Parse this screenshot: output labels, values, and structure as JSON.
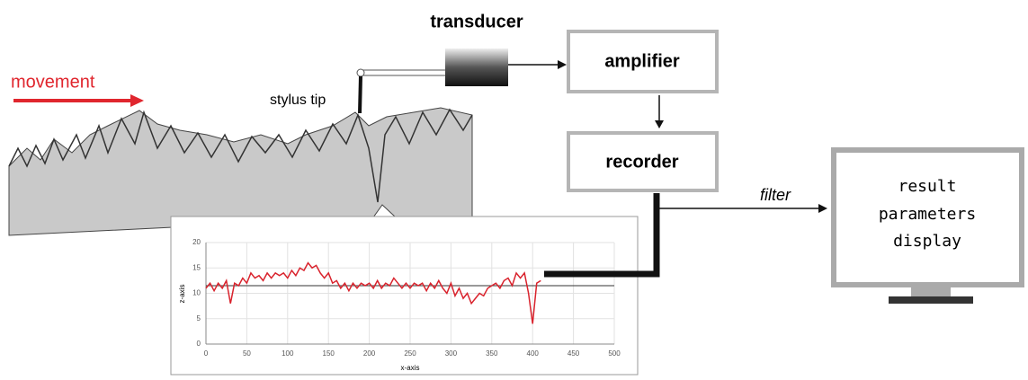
{
  "labels": {
    "movement": "movement",
    "stylus": "stylus tip",
    "transducer": "transducer",
    "amplifier": "amplifier",
    "recorder": "recorder",
    "filter": "filter",
    "display": [
      "result",
      "parameters",
      "display"
    ]
  },
  "chart_data": {
    "type": "line",
    "xlabel": "x-axis",
    "ylabel": "z-axis",
    "grid": true,
    "xlim": [
      0,
      500
    ],
    "xticks": [
      0,
      50,
      100,
      150,
      200,
      250,
      300,
      350,
      400,
      450,
      500
    ],
    "ylim": [
      0,
      20
    ],
    "yticks": [
      0,
      5,
      10,
      15,
      20
    ],
    "hline": 11.5,
    "x": [
      0,
      5,
      10,
      15,
      20,
      25,
      30,
      35,
      40,
      45,
      50,
      55,
      60,
      65,
      70,
      75,
      80,
      85,
      90,
      95,
      100,
      105,
      110,
      115,
      120,
      125,
      130,
      135,
      140,
      145,
      150,
      155,
      160,
      165,
      170,
      175,
      180,
      185,
      190,
      195,
      200,
      205,
      210,
      215,
      220,
      225,
      230,
      235,
      240,
      245,
      250,
      255,
      260,
      265,
      270,
      275,
      280,
      285,
      290,
      295,
      300,
      305,
      310,
      315,
      320,
      325,
      330,
      335,
      340,
      345,
      350,
      355,
      360,
      365,
      370,
      375,
      380,
      385,
      390,
      395,
      400,
      405,
      410
    ],
    "series": [
      {
        "color": "#d9232d",
        "values": [
          11,
          12,
          10.5,
          12,
          11,
          12.5,
          8,
          12,
          11.5,
          13,
          12,
          14,
          13,
          13.5,
          12.5,
          14,
          13,
          14,
          13.5,
          14,
          13,
          14.5,
          13.5,
          15,
          14.5,
          16,
          15,
          15.5,
          14,
          13,
          14,
          12,
          12.5,
          11,
          12,
          10.5,
          12,
          11,
          12,
          11.5,
          12,
          11,
          12.5,
          11,
          12,
          11.5,
          13,
          12,
          11,
          12,
          11,
          12,
          11.5,
          12,
          10.5,
          12,
          11,
          12.5,
          11,
          10,
          12,
          9.5,
          11,
          9,
          10,
          8,
          9,
          10,
          9.5,
          11,
          11.5,
          12,
          11,
          12.5,
          13,
          11.5,
          14,
          13,
          14,
          10,
          4,
          12,
          12.5
        ]
      }
    ]
  }
}
